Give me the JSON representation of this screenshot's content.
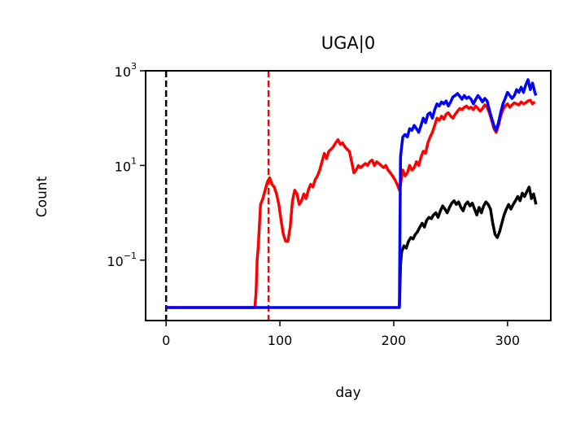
{
  "chart_data": {
    "type": "line",
    "title": "UGA|0",
    "xlabel": "day",
    "ylabel": "Count",
    "yscale": "log",
    "xlim": [
      -18,
      338
    ],
    "ylim": [
      0.0053,
      1000
    ],
    "xticks": [
      {
        "value": 0,
        "label": "0"
      },
      {
        "value": 100,
        "label": "100"
      },
      {
        "value": 200,
        "label": "200"
      },
      {
        "value": 300,
        "label": "300"
      }
    ],
    "yticks": [
      {
        "value": 0.1,
        "base": "10",
        "exp": "−1"
      },
      {
        "value": 10,
        "base": "10",
        "exp": "1"
      },
      {
        "value": 1000,
        "base": "10",
        "exp": "3"
      }
    ],
    "grid": false,
    "vlines": [
      {
        "x": 0,
        "color": "#000000",
        "style": "dashed"
      },
      {
        "x": 90,
        "color": "#ff0000",
        "style": "dashed"
      }
    ],
    "series": [
      {
        "color": "#ff0000",
        "points": [
          [
            0,
            0.01
          ],
          [
            78,
            0.01
          ],
          [
            79,
            0.02
          ],
          [
            80,
            0.1
          ],
          [
            81,
            0.2
          ],
          [
            83,
            1.5
          ],
          [
            85,
            2.0
          ],
          [
            87,
            3.0
          ],
          [
            89,
            4.5
          ],
          [
            91,
            5.5
          ],
          [
            93,
            4.0
          ],
          [
            95,
            3.5
          ],
          [
            97,
            2.5
          ],
          [
            99,
            1.5
          ],
          [
            101,
            0.7
          ],
          [
            103,
            0.35
          ],
          [
            105,
            0.25
          ],
          [
            107,
            0.25
          ],
          [
            109,
            0.5
          ],
          [
            111,
            1.8
          ],
          [
            113,
            3.0
          ],
          [
            115,
            2.5
          ],
          [
            117,
            1.5
          ],
          [
            119,
            1.8
          ],
          [
            121,
            2.5
          ],
          [
            123,
            2.0
          ],
          [
            125,
            3.0
          ],
          [
            127,
            4.0
          ],
          [
            129,
            3.5
          ],
          [
            131,
            5.0
          ],
          [
            133,
            6.0
          ],
          [
            135,
            8.0
          ],
          [
            137,
            12
          ],
          [
            139,
            18
          ],
          [
            141,
            14
          ],
          [
            143,
            20
          ],
          [
            145,
            22
          ],
          [
            147,
            25
          ],
          [
            149,
            30
          ],
          [
            151,
            35
          ],
          [
            153,
            28
          ],
          [
            155,
            30
          ],
          [
            157,
            25
          ],
          [
            159,
            22
          ],
          [
            161,
            20
          ],
          [
            163,
            12
          ],
          [
            165,
            7.0
          ],
          [
            167,
            8.0
          ],
          [
            169,
            10
          ],
          [
            171,
            9.0
          ],
          [
            173,
            10
          ],
          [
            175,
            11
          ],
          [
            177,
            10
          ],
          [
            179,
            12
          ],
          [
            181,
            13
          ],
          [
            183,
            10
          ],
          [
            185,
            12
          ],
          [
            187,
            11
          ],
          [
            189,
            10
          ],
          [
            191,
            9.0
          ],
          [
            193,
            10
          ],
          [
            195,
            8.0
          ],
          [
            197,
            7.0
          ],
          [
            199,
            6.0
          ],
          [
            201,
            5.0
          ],
          [
            203,
            4.0
          ],
          [
            205,
            3.0
          ],
          [
            206,
            4.0
          ],
          [
            208,
            8.0
          ],
          [
            210,
            6.0
          ],
          [
            212,
            7.0
          ],
          [
            214,
            10
          ],
          [
            216,
            8.0
          ],
          [
            218,
            9.0
          ],
          [
            220,
            12
          ],
          [
            222,
            10
          ],
          [
            224,
            15
          ],
          [
            226,
            20
          ],
          [
            228,
            18
          ],
          [
            230,
            30
          ],
          [
            232,
            40
          ],
          [
            234,
            50
          ],
          [
            236,
            70
          ],
          [
            238,
            100
          ],
          [
            240,
            90
          ],
          [
            242,
            110
          ],
          [
            244,
            95
          ],
          [
            246,
            120
          ],
          [
            248,
            130
          ],
          [
            250,
            110
          ],
          [
            252,
            100
          ],
          [
            254,
            120
          ],
          [
            256,
            140
          ],
          [
            258,
            160
          ],
          [
            260,
            150
          ],
          [
            262,
            170
          ],
          [
            264,
            180
          ],
          [
            266,
            160
          ],
          [
            268,
            170
          ],
          [
            270,
            150
          ],
          [
            272,
            180
          ],
          [
            274,
            160
          ],
          [
            276,
            140
          ],
          [
            278,
            160
          ],
          [
            280,
            190
          ],
          [
            282,
            170
          ],
          [
            284,
            130
          ],
          [
            286,
            90
          ],
          [
            288,
            60
          ],
          [
            290,
            50
          ],
          [
            292,
            70
          ],
          [
            294,
            110
          ],
          [
            296,
            150
          ],
          [
            298,
            180
          ],
          [
            300,
            200
          ],
          [
            302,
            170
          ],
          [
            304,
            190
          ],
          [
            306,
            210
          ],
          [
            308,
            200
          ],
          [
            310,
            190
          ],
          [
            312,
            220
          ],
          [
            314,
            200
          ],
          [
            316,
            210
          ],
          [
            318,
            230
          ],
          [
            320,
            240
          ],
          [
            322,
            200
          ],
          [
            324,
            220
          ]
        ]
      },
      {
        "color": "#000000",
        "points": [
          [
            205,
            0.01
          ],
          [
            206,
            0.08
          ],
          [
            207,
            0.15
          ],
          [
            209,
            0.2
          ],
          [
            211,
            0.18
          ],
          [
            213,
            0.25
          ],
          [
            215,
            0.3
          ],
          [
            217,
            0.28
          ],
          [
            219,
            0.35
          ],
          [
            221,
            0.4
          ],
          [
            223,
            0.5
          ],
          [
            225,
            0.6
          ],
          [
            227,
            0.5
          ],
          [
            229,
            0.7
          ],
          [
            231,
            0.8
          ],
          [
            233,
            0.75
          ],
          [
            235,
            0.9
          ],
          [
            237,
            1.0
          ],
          [
            239,
            0.8
          ],
          [
            241,
            1.1
          ],
          [
            243,
            1.4
          ],
          [
            245,
            1.2
          ],
          [
            247,
            1.0
          ],
          [
            249,
            1.3
          ],
          [
            251,
            1.6
          ],
          [
            253,
            1.8
          ],
          [
            255,
            1.5
          ],
          [
            257,
            1.7
          ],
          [
            259,
            1.3
          ],
          [
            261,
            1.1
          ],
          [
            263,
            1.5
          ],
          [
            265,
            1.7
          ],
          [
            267,
            1.4
          ],
          [
            269,
            1.6
          ],
          [
            271,
            1.2
          ],
          [
            273,
            0.9
          ],
          [
            275,
            1.3
          ],
          [
            277,
            1.0
          ],
          [
            279,
            1.4
          ],
          [
            281,
            1.7
          ],
          [
            283,
            1.5
          ],
          [
            285,
            1.2
          ],
          [
            287,
            0.6
          ],
          [
            289,
            0.35
          ],
          [
            291,
            0.3
          ],
          [
            293,
            0.4
          ],
          [
            295,
            0.6
          ],
          [
            297,
            0.9
          ],
          [
            299,
            1.2
          ],
          [
            301,
            1.5
          ],
          [
            303,
            1.2
          ],
          [
            305,
            1.5
          ],
          [
            307,
            1.8
          ],
          [
            309,
            2.2
          ],
          [
            311,
            1.8
          ],
          [
            313,
            2.6
          ],
          [
            315,
            2.2
          ],
          [
            317,
            2.8
          ],
          [
            319,
            3.5
          ],
          [
            321,
            2.0
          ],
          [
            323,
            2.5
          ],
          [
            325,
            1.5
          ]
        ]
      },
      {
        "color": "#0000ff",
        "points": [
          [
            0,
            0.01
          ],
          [
            204,
            0.01
          ],
          [
            205,
            0.01
          ],
          [
            206,
            15
          ],
          [
            207,
            25
          ],
          [
            208,
            40
          ],
          [
            210,
            45
          ],
          [
            212,
            40
          ],
          [
            214,
            60
          ],
          [
            216,
            55
          ],
          [
            218,
            70
          ],
          [
            220,
            60
          ],
          [
            222,
            50
          ],
          [
            224,
            70
          ],
          [
            226,
            100
          ],
          [
            228,
            80
          ],
          [
            230,
            120
          ],
          [
            232,
            130
          ],
          [
            234,
            100
          ],
          [
            236,
            150
          ],
          [
            238,
            200
          ],
          [
            240,
            180
          ],
          [
            242,
            220
          ],
          [
            244,
            200
          ],
          [
            246,
            230
          ],
          [
            248,
            180
          ],
          [
            250,
            220
          ],
          [
            252,
            280
          ],
          [
            254,
            300
          ],
          [
            256,
            330
          ],
          [
            258,
            290
          ],
          [
            260,
            250
          ],
          [
            262,
            300
          ],
          [
            264,
            260
          ],
          [
            266,
            280
          ],
          [
            268,
            250
          ],
          [
            270,
            200
          ],
          [
            272,
            250
          ],
          [
            274,
            300
          ],
          [
            276,
            260
          ],
          [
            278,
            220
          ],
          [
            280,
            260
          ],
          [
            282,
            230
          ],
          [
            284,
            150
          ],
          [
            286,
            100
          ],
          [
            288,
            70
          ],
          [
            290,
            55
          ],
          [
            292,
            80
          ],
          [
            294,
            130
          ],
          [
            296,
            200
          ],
          [
            298,
            260
          ],
          [
            300,
            350
          ],
          [
            302,
            300
          ],
          [
            304,
            260
          ],
          [
            306,
            300
          ],
          [
            308,
            400
          ],
          [
            310,
            350
          ],
          [
            312,
            450
          ],
          [
            314,
            350
          ],
          [
            316,
            500
          ],
          [
            318,
            650
          ],
          [
            320,
            400
          ],
          [
            322,
            550
          ],
          [
            324,
            350
          ],
          [
            325,
            300
          ]
        ]
      }
    ]
  }
}
